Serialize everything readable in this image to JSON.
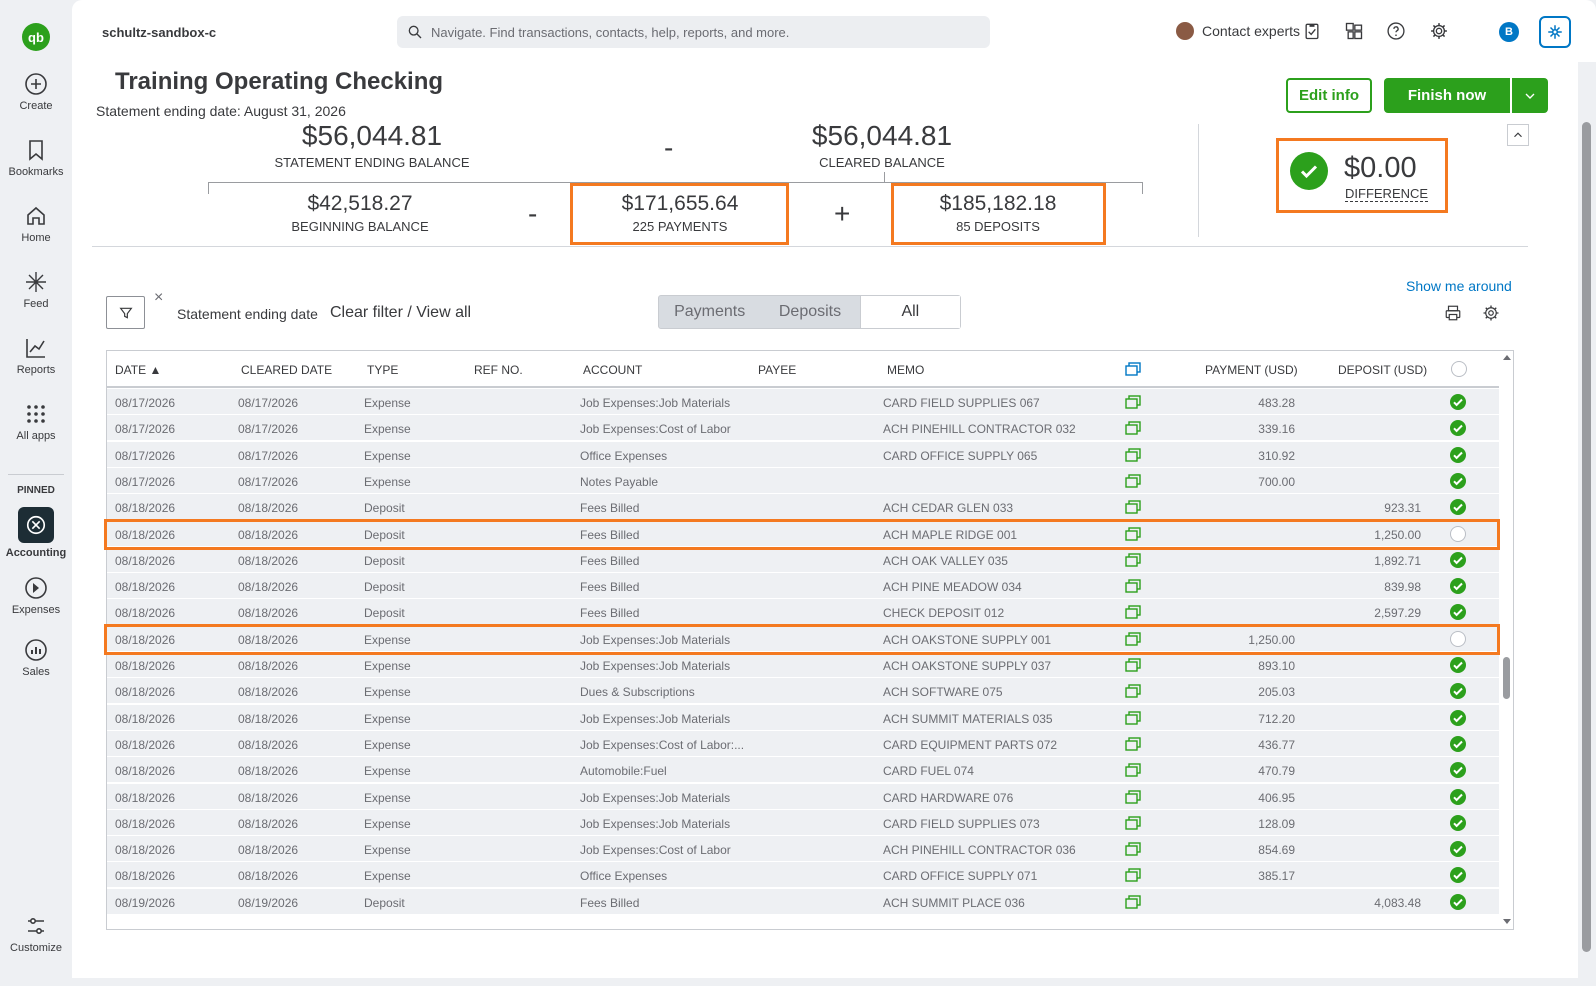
{
  "nav": {
    "logo": "qb",
    "items": [
      {
        "label": "Create"
      },
      {
        "label": "Bookmarks"
      },
      {
        "label": "Home"
      },
      {
        "label": "Feed"
      },
      {
        "label": "Reports"
      },
      {
        "label": "All apps"
      }
    ],
    "pinned_label": "PINNED",
    "pinned": [
      {
        "label": "Accounting"
      },
      {
        "label": "Expenses"
      },
      {
        "label": "Sales"
      }
    ],
    "customize": "Customize"
  },
  "header": {
    "company": "schultz-sandbox-c",
    "search_placeholder": "Navigate. Find transactions, contacts, help, reports, and more.",
    "contact": "Contact experts",
    "avatar_letter": "B"
  },
  "page": {
    "title": "Training Operating Checking",
    "statement_date": "Statement ending date: August 31, 2026",
    "edit_info": "Edit info",
    "finish_now": "Finish now"
  },
  "summary": {
    "statement_balance": "$56,044.81",
    "statement_balance_label": "STATEMENT ENDING BALANCE",
    "minus1": "-",
    "cleared_balance": "$56,044.81",
    "cleared_balance_label": "CLEARED BALANCE",
    "beginning_balance": "$42,518.27",
    "beginning_balance_label": "BEGINNING BALANCE",
    "minus2": "-",
    "payments": "$171,655.64",
    "payments_label": "225 PAYMENTS",
    "plus": "+",
    "deposits": "$185,182.18",
    "deposits_label": "85 DEPOSITS",
    "difference": "$0.00",
    "difference_label": "DIFFERENCE"
  },
  "filters": {
    "show_me_around": "Show me around",
    "close": "×",
    "filter_label": "Statement ending date",
    "clear_filter": "Clear filter / View all",
    "segments": [
      "Payments",
      "Deposits",
      "All"
    ],
    "active_segment": "All"
  },
  "table": {
    "columns": [
      "DATE ▲",
      "CLEARED DATE",
      "TYPE",
      "REF NO.",
      "ACCOUNT",
      "PAYEE",
      "MEMO",
      "PAYMENT (USD)",
      "DEPOSIT (USD)"
    ],
    "rows": [
      {
        "date": "08/17/2026",
        "cleared": "08/17/2026",
        "type": "Expense",
        "account": "Job Expenses:Job Materials",
        "memo": "CARD FIELD SUPPLIES 067",
        "payment": "483.28",
        "deposit": "",
        "checked": true
      },
      {
        "date": "08/17/2026",
        "cleared": "08/17/2026",
        "type": "Expense",
        "account": "Job Expenses:Cost of Labor",
        "memo": "ACH PINEHILL CONTRACTOR 032",
        "payment": "339.16",
        "deposit": "",
        "checked": true
      },
      {
        "date": "08/17/2026",
        "cleared": "08/17/2026",
        "type": "Expense",
        "account": "Office Expenses",
        "memo": "CARD OFFICE SUPPLY 065",
        "payment": "310.92",
        "deposit": "",
        "checked": true
      },
      {
        "date": "08/17/2026",
        "cleared": "08/17/2026",
        "type": "Expense",
        "account": "Notes Payable",
        "memo": "",
        "payment": "700.00",
        "deposit": "",
        "checked": true
      },
      {
        "date": "08/18/2026",
        "cleared": "08/18/2026",
        "type": "Deposit",
        "account": "Fees Billed",
        "memo": "ACH CEDAR GLEN 033",
        "payment": "",
        "deposit": "923.31",
        "checked": true
      },
      {
        "date": "08/18/2026",
        "cleared": "08/18/2026",
        "type": "Deposit",
        "account": "Fees Billed",
        "memo": "ACH MAPLE RIDGE 001",
        "payment": "",
        "deposit": "1,250.00",
        "checked": false
      },
      {
        "date": "08/18/2026",
        "cleared": "08/18/2026",
        "type": "Deposit",
        "account": "Fees Billed",
        "memo": "ACH OAK VALLEY 035",
        "payment": "",
        "deposit": "1,892.71",
        "checked": true
      },
      {
        "date": "08/18/2026",
        "cleared": "08/18/2026",
        "type": "Deposit",
        "account": "Fees Billed",
        "memo": "ACH PINE MEADOW 034",
        "payment": "",
        "deposit": "839.98",
        "checked": true
      },
      {
        "date": "08/18/2026",
        "cleared": "08/18/2026",
        "type": "Deposit",
        "account": "Fees Billed",
        "memo": "CHECK DEPOSIT 012",
        "payment": "",
        "deposit": "2,597.29",
        "checked": true
      },
      {
        "date": "08/18/2026",
        "cleared": "08/18/2026",
        "type": "Expense",
        "account": "Job Expenses:Job Materials",
        "memo": "ACH OAKSTONE SUPPLY 001",
        "payment": "1,250.00",
        "deposit": "",
        "checked": false
      },
      {
        "date": "08/18/2026",
        "cleared": "08/18/2026",
        "type": "Expense",
        "account": "Job Expenses:Job Materials",
        "memo": "ACH OAKSTONE SUPPLY 037",
        "payment": "893.10",
        "deposit": "",
        "checked": true
      },
      {
        "date": "08/18/2026",
        "cleared": "08/18/2026",
        "type": "Expense",
        "account": "Dues & Subscriptions",
        "memo": "ACH SOFTWARE 075",
        "payment": "205.03",
        "deposit": "",
        "checked": true
      },
      {
        "date": "08/18/2026",
        "cleared": "08/18/2026",
        "type": "Expense",
        "account": "Job Expenses:Job Materials",
        "memo": "ACH SUMMIT MATERIALS 035",
        "payment": "712.20",
        "deposit": "",
        "checked": true
      },
      {
        "date": "08/18/2026",
        "cleared": "08/18/2026",
        "type": "Expense",
        "account": "Job Expenses:Cost of Labor:...",
        "memo": "CARD EQUIPMENT PARTS 072",
        "payment": "436.77",
        "deposit": "",
        "checked": true
      },
      {
        "date": "08/18/2026",
        "cleared": "08/18/2026",
        "type": "Expense",
        "account": "Automobile:Fuel",
        "memo": "CARD FUEL 074",
        "payment": "470.79",
        "deposit": "",
        "checked": true
      },
      {
        "date": "08/18/2026",
        "cleared": "08/18/2026",
        "type": "Expense",
        "account": "Job Expenses:Job Materials",
        "memo": "CARD HARDWARE 076",
        "payment": "406.95",
        "deposit": "",
        "checked": true
      },
      {
        "date": "08/18/2026",
        "cleared": "08/18/2026",
        "type": "Expense",
        "account": "Job Expenses:Job Materials",
        "memo": "CARD FIELD SUPPLIES 073",
        "payment": "128.09",
        "deposit": "",
        "checked": true
      },
      {
        "date": "08/18/2026",
        "cleared": "08/18/2026",
        "type": "Expense",
        "account": "Job Expenses:Cost of Labor",
        "memo": "ACH PINEHILL CONTRACTOR 036",
        "payment": "854.69",
        "deposit": "",
        "checked": true
      },
      {
        "date": "08/18/2026",
        "cleared": "08/18/2026",
        "type": "Expense",
        "account": "Office Expenses",
        "memo": "CARD OFFICE SUPPLY 071",
        "payment": "385.17",
        "deposit": "",
        "checked": true
      },
      {
        "date": "08/19/2026",
        "cleared": "08/19/2026",
        "type": "Deposit",
        "account": "Fees Billed",
        "memo": "ACH SUMMIT PLACE 036",
        "payment": "",
        "deposit": "4,083.48",
        "checked": true
      }
    ]
  },
  "colors": {
    "brand_green": "#2ca01c",
    "highlight": "#f47920",
    "link": "#0077c5"
  }
}
